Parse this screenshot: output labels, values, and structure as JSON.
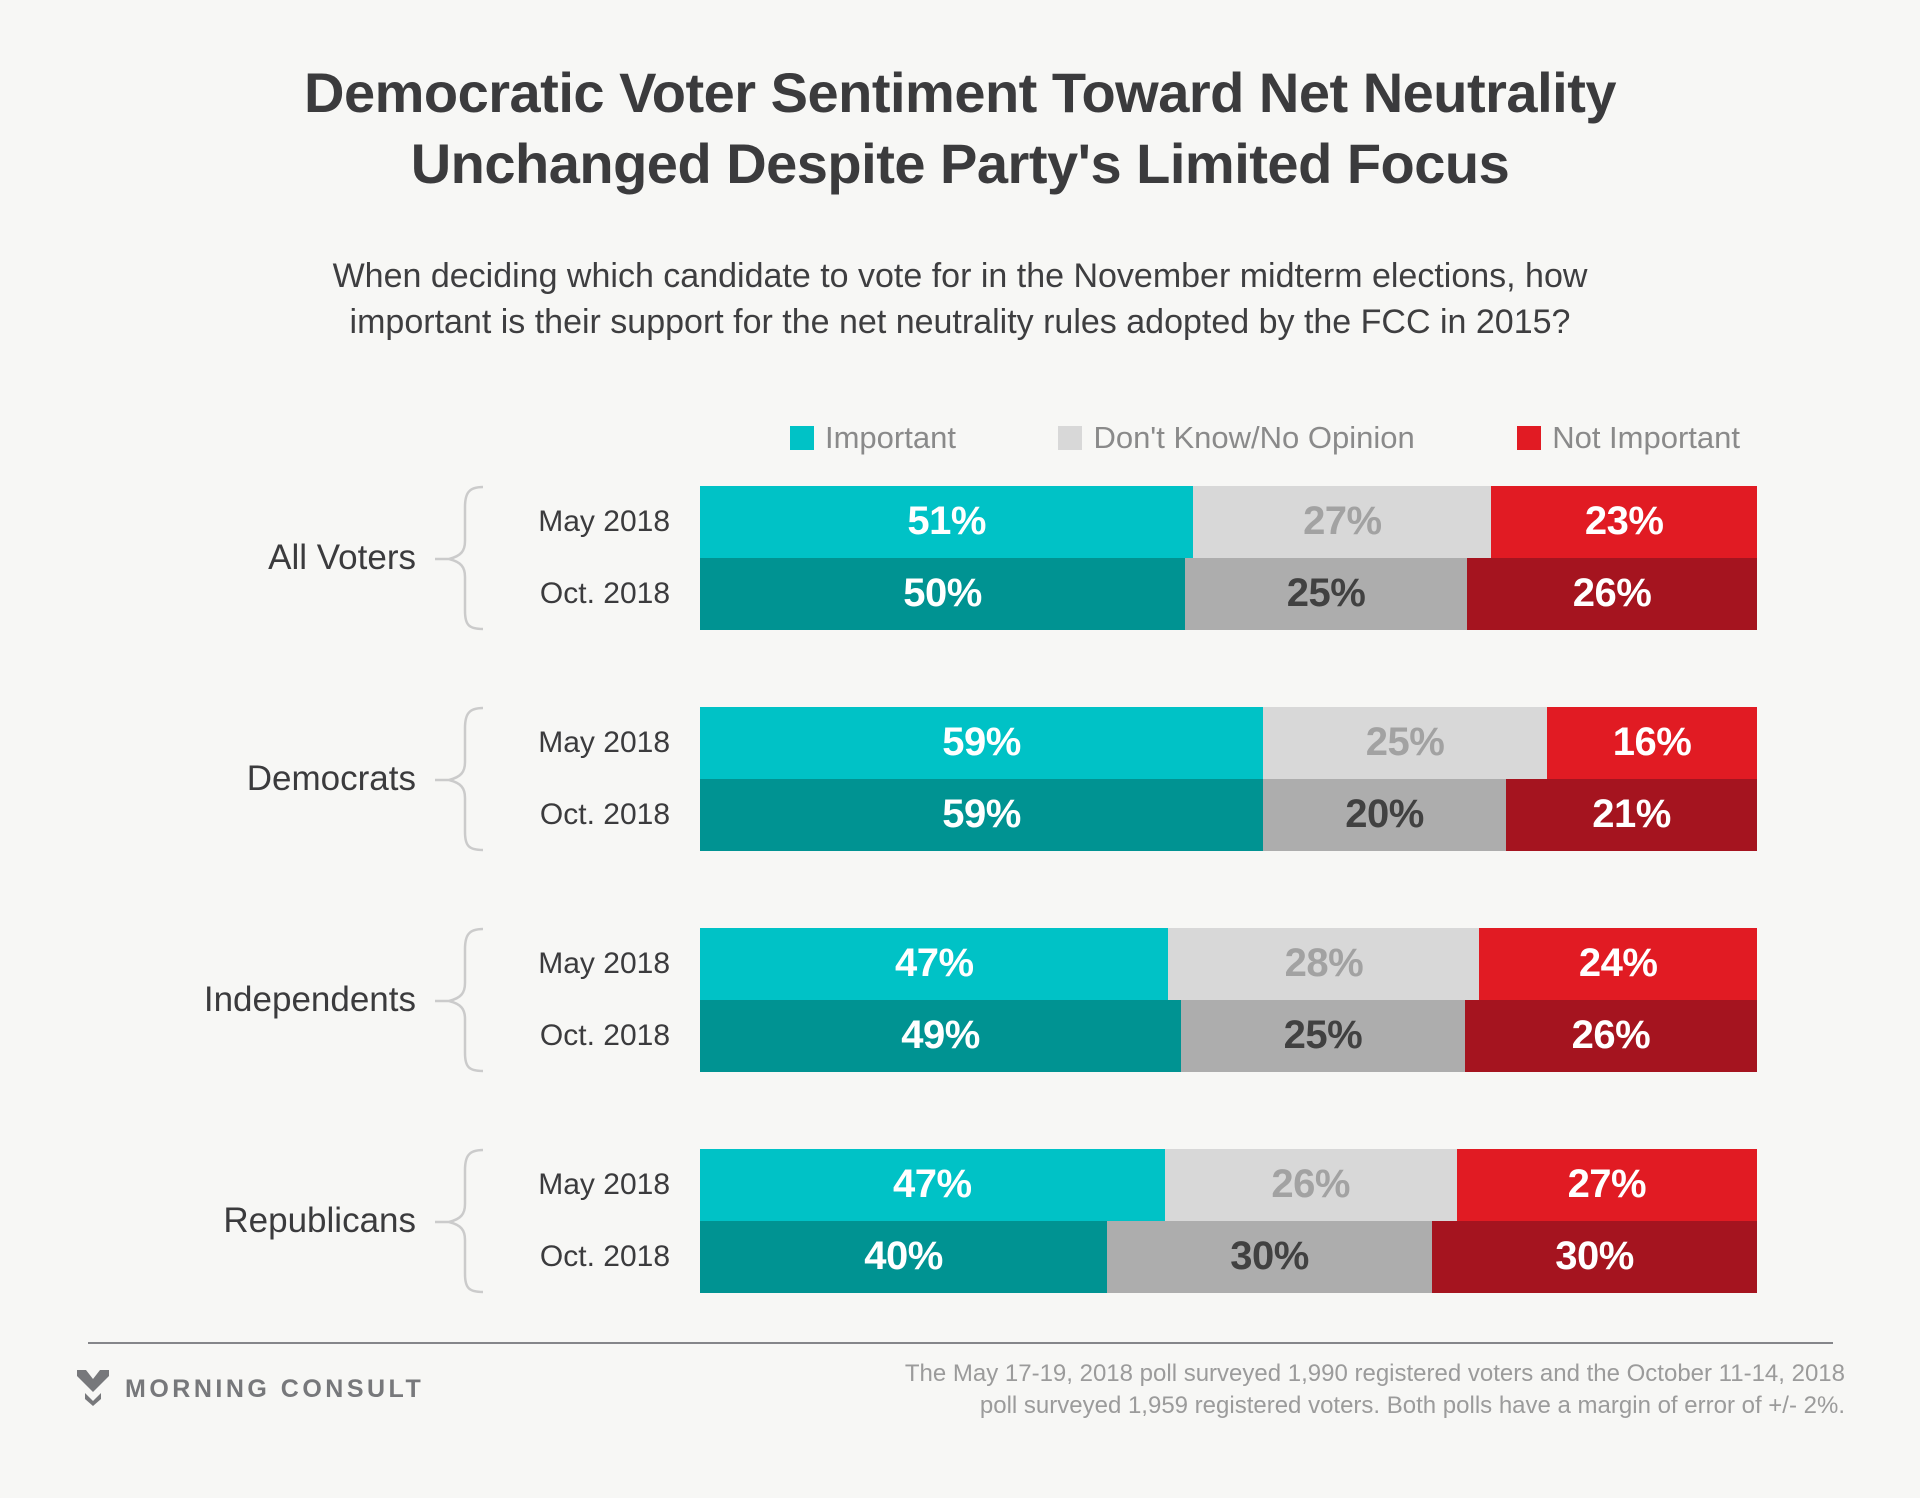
{
  "title": "Democratic Voter Sentiment Toward Net Neutrality Unchanged Despite Party's Limited Focus",
  "subtitle": "When deciding which candidate to vote for in the November midterm elections, how important is their support for the net neutrality rules adopted by the FCC in 2015?",
  "legend": [
    {
      "label": "Important",
      "color": "#00C2C6"
    },
    {
      "label": "Don't Know/No Opinion",
      "color": "#D8D8D8"
    },
    {
      "label": "Not Important",
      "color": "#E11B23"
    }
  ],
  "chart_data": {
    "type": "bar",
    "orientation": "horizontal-stacked",
    "unit": "%",
    "categories": [
      "Important",
      "Don't Know/No Opinion",
      "Not Important"
    ],
    "may_colors": [
      "#00C2C6",
      "#D8D8D8",
      "#E11B23"
    ],
    "oct_colors": [
      "#009392",
      "#ADADAD",
      "#A5141F"
    ],
    "may_text_colors": [
      "#FFFFFF",
      "#A2A2A2",
      "#FFFFFF"
    ],
    "oct_text_colors": [
      "#FFFFFF",
      "#414141",
      "#FFFFFF"
    ],
    "groups": [
      {
        "label": "All Voters",
        "rows": [
          {
            "label": "May 2018",
            "values": [
              51,
              27,
              23
            ]
          },
          {
            "label": "Oct. 2018",
            "values": [
              50,
              25,
              26
            ]
          }
        ]
      },
      {
        "label": "Democrats",
        "rows": [
          {
            "label": "May 2018",
            "values": [
              59,
              25,
              16
            ]
          },
          {
            "label": "Oct. 2018",
            "values": [
              59,
              20,
              21
            ]
          }
        ]
      },
      {
        "label": "Independents",
        "rows": [
          {
            "label": "May 2018",
            "values": [
              47,
              28,
              24
            ]
          },
          {
            "label": "Oct. 2018",
            "values": [
              49,
              25,
              26
            ]
          }
        ]
      },
      {
        "label": "Republicans",
        "rows": [
          {
            "label": "May 2018",
            "values": [
              47,
              26,
              27
            ]
          },
          {
            "label": "Oct. 2018",
            "values": [
              40,
              30,
              30
            ]
          }
        ]
      }
    ]
  },
  "footer": {
    "brand": "MORNING CONSULT",
    "note_line1": "The May 17-19, 2018 poll surveyed 1,990 registered voters and the October 11-14, 2018",
    "note_line2": "poll surveyed 1,959 registered voters. Both polls have a margin of error of +/- 2%."
  }
}
